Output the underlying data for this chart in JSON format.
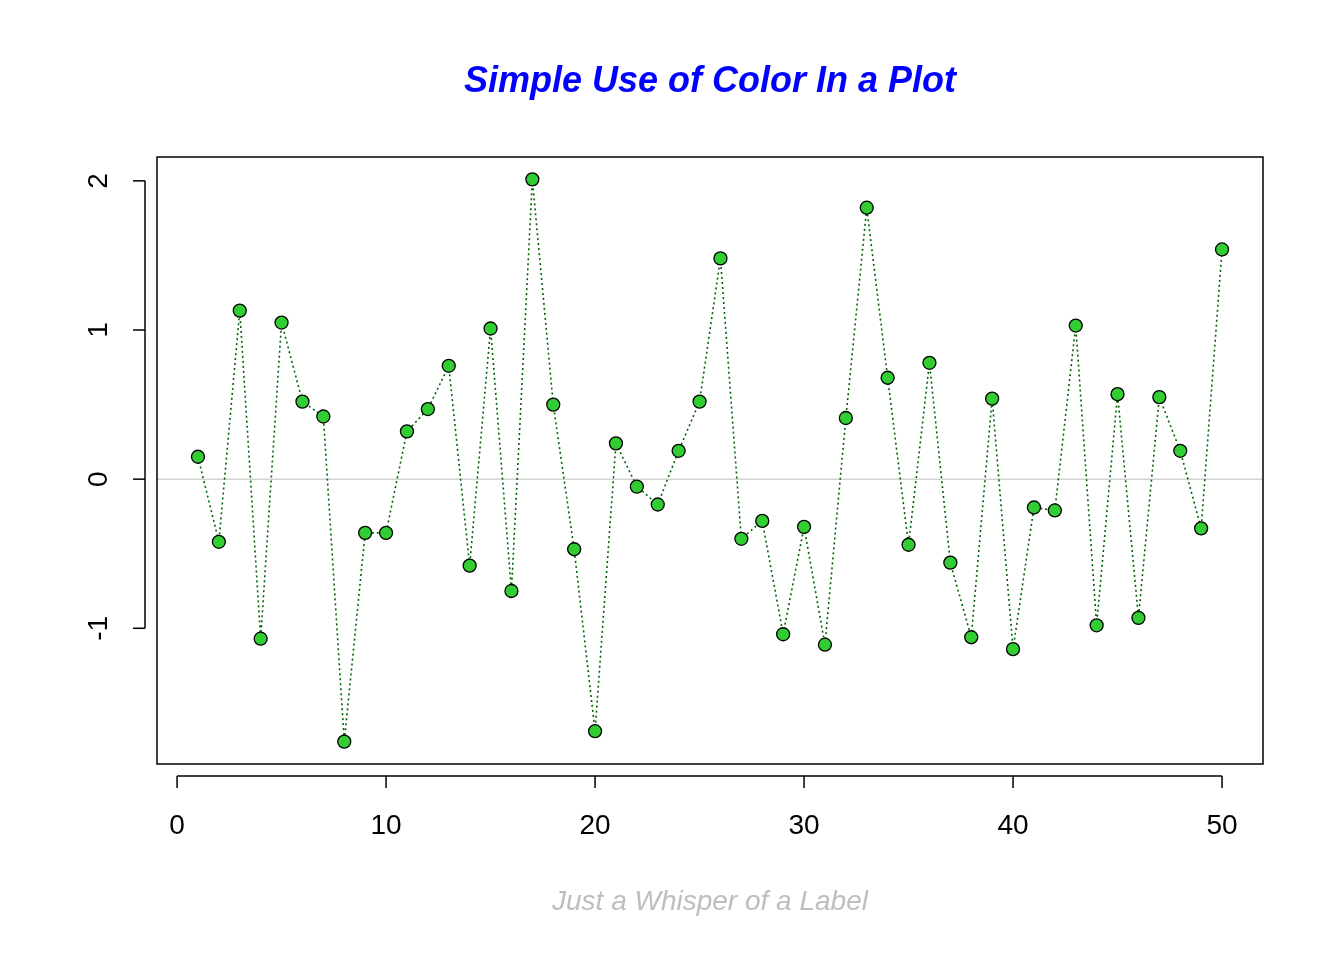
{
  "chart_data": {
    "type": "line",
    "title": "Simple Use of Color In a Plot",
    "xlabel": "Just a Whisper of a Label",
    "x": [
      1,
      2,
      3,
      4,
      5,
      6,
      7,
      8,
      9,
      10,
      11,
      12,
      13,
      14,
      15,
      16,
      17,
      18,
      19,
      20,
      21,
      22,
      23,
      24,
      25,
      26,
      27,
      28,
      29,
      30,
      31,
      32,
      33,
      34,
      35,
      36,
      37,
      38,
      39,
      40,
      41,
      42,
      43,
      44,
      45,
      46,
      47,
      48,
      49,
      50
    ],
    "series": [
      {
        "color": "#006400",
        "line_style": "dotted",
        "marker": "none",
        "values": [
          0.15,
          -0.42,
          1.13,
          -1.07,
          1.05,
          0.52,
          0.42,
          -1.76,
          -0.36,
          -0.36,
          0.32,
          0.47,
          0.76,
          -0.58,
          1.01,
          -0.75,
          2.01,
          0.5,
          -0.47,
          -1.69,
          0.24,
          -0.05,
          -0.17,
          0.19,
          0.52,
          1.48,
          -0.4,
          -0.28,
          -1.04,
          -0.32,
          -1.11,
          0.41,
          1.82,
          0.68,
          -0.44,
          0.78,
          -0.56,
          -1.06,
          0.54,
          -1.14,
          -0.19,
          -0.21,
          1.03,
          -0.98,
          0.57,
          -0.93,
          0.55,
          0.19,
          -0.33,
          1.54
        ]
      },
      {
        "type": "scatter",
        "color": "#32cd32",
        "marker": "circle",
        "values": [
          0.15,
          -0.42,
          1.13,
          -1.07,
          1.05,
          0.52,
          0.42,
          -1.76,
          -0.36,
          -0.36,
          0.32,
          0.47,
          0.76,
          -0.58,
          1.01,
          -0.75,
          2.01,
          0.5,
          -0.47,
          -1.69,
          0.24,
          -0.05,
          -0.17,
          0.19,
          0.52,
          1.48,
          -0.4,
          -0.28,
          -1.04,
          -0.32,
          -1.11,
          0.41,
          1.82,
          0.68,
          -0.44,
          0.78,
          -0.56,
          -1.06,
          0.54,
          -1.14,
          -0.19,
          -0.21,
          1.03,
          -0.98,
          0.57,
          -0.93,
          0.55,
          0.19,
          -0.33,
          1.54
        ]
      }
    ],
    "xlim": [
      -0.96,
      51.96
    ],
    "ylim": [
      -1.91,
      2.16
    ],
    "xticks": [
      0,
      10,
      20,
      30,
      40,
      50
    ],
    "yticks": [
      -1,
      0,
      1,
      2
    ],
    "ref_lines": [
      {
        "axis": "y",
        "value": 0,
        "color": "#d3d3d3"
      }
    ],
    "grid": false
  }
}
